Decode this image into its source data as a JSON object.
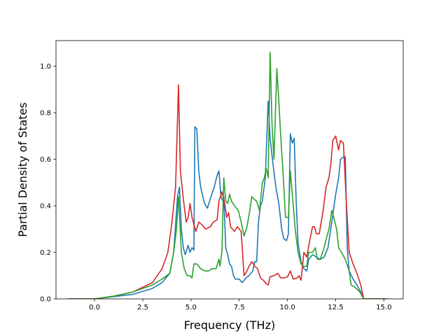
{
  "chart_data": {
    "type": "line",
    "title": "",
    "xlabel": "Frequency (THz)",
    "ylabel": "Partial Density of States",
    "xlim": [
      -2.0,
      16.0
    ],
    "ylim": [
      0.0,
      1.11
    ],
    "xticks": [
      0.0,
      2.5,
      5.0,
      7.5,
      10.0,
      12.5,
      15.0
    ],
    "xtick_labels": [
      "0.0",
      "2.5",
      "5.0",
      "7.5",
      "10.0",
      "12.5",
      "15.0"
    ],
    "yticks": [
      0.0,
      0.2,
      0.4,
      0.6,
      0.8,
      1.0
    ],
    "ytick_labels": [
      "0.0",
      "0.2",
      "0.4",
      "0.6",
      "0.8",
      "1.0"
    ],
    "grid": false,
    "legend": "none",
    "series": [
      {
        "color": "#1f77b4",
        "points": [
          [
            -1.4,
            0.0
          ],
          [
            0.0,
            0.0
          ],
          [
            1.0,
            0.01
          ],
          [
            2.0,
            0.02
          ],
          [
            3.0,
            0.045
          ],
          [
            3.5,
            0.07
          ],
          [
            3.9,
            0.11
          ],
          [
            4.1,
            0.2
          ],
          [
            4.3,
            0.44
          ],
          [
            4.4,
            0.48
          ],
          [
            4.5,
            0.3
          ],
          [
            4.6,
            0.22
          ],
          [
            4.7,
            0.19
          ],
          [
            4.85,
            0.23
          ],
          [
            4.95,
            0.2
          ],
          [
            5.05,
            0.22
          ],
          [
            5.15,
            0.21
          ],
          [
            5.2,
            0.74
          ],
          [
            5.3,
            0.73
          ],
          [
            5.4,
            0.55
          ],
          [
            5.5,
            0.48
          ],
          [
            5.7,
            0.41
          ],
          [
            5.85,
            0.39
          ],
          [
            6.0,
            0.43
          ],
          [
            6.2,
            0.48
          ],
          [
            6.35,
            0.53
          ],
          [
            6.45,
            0.55
          ],
          [
            6.55,
            0.44
          ],
          [
            6.65,
            0.42
          ],
          [
            6.7,
            0.44
          ],
          [
            6.8,
            0.22
          ],
          [
            6.9,
            0.19
          ],
          [
            7.0,
            0.15
          ],
          [
            7.1,
            0.14
          ],
          [
            7.2,
            0.1
          ],
          [
            7.3,
            0.085
          ],
          [
            7.5,
            0.085
          ],
          [
            7.65,
            0.07
          ],
          [
            7.85,
            0.09
          ],
          [
            8.0,
            0.1
          ],
          [
            8.2,
            0.12
          ],
          [
            8.3,
            0.16
          ],
          [
            8.4,
            0.16
          ],
          [
            8.5,
            0.33
          ],
          [
            8.6,
            0.4
          ],
          [
            8.7,
            0.42
          ],
          [
            8.85,
            0.52
          ],
          [
            9.0,
            0.85
          ],
          [
            9.1,
            0.69
          ],
          [
            9.25,
            0.58
          ],
          [
            9.4,
            0.48
          ],
          [
            9.55,
            0.41
          ],
          [
            9.7,
            0.3
          ],
          [
            9.8,
            0.26
          ],
          [
            9.95,
            0.25
          ],
          [
            10.05,
            0.28
          ],
          [
            10.15,
            0.71
          ],
          [
            10.25,
            0.67
          ],
          [
            10.35,
            0.69
          ],
          [
            10.45,
            0.42
          ],
          [
            10.55,
            0.24
          ],
          [
            10.7,
            0.16
          ],
          [
            10.85,
            0.13
          ],
          [
            11.0,
            0.12
          ],
          [
            11.1,
            0.17
          ],
          [
            11.3,
            0.19
          ],
          [
            11.5,
            0.18
          ],
          [
            11.7,
            0.17
          ],
          [
            11.9,
            0.18
          ],
          [
            12.1,
            0.22
          ],
          [
            12.3,
            0.33
          ],
          [
            12.5,
            0.45
          ],
          [
            12.65,
            0.52
          ],
          [
            12.75,
            0.6
          ],
          [
            12.9,
            0.61
          ],
          [
            13.0,
            0.61
          ],
          [
            13.1,
            0.22
          ],
          [
            13.2,
            0.12
          ],
          [
            13.4,
            0.085
          ],
          [
            13.6,
            0.06
          ],
          [
            13.8,
            0.03
          ],
          [
            13.95,
            0.0
          ],
          [
            15.2,
            0.0
          ]
        ]
      },
      {
        "color": "#d62728",
        "points": [
          [
            -1.4,
            0.0
          ],
          [
            0.0,
            0.0
          ],
          [
            1.0,
            0.012
          ],
          [
            2.0,
            0.03
          ],
          [
            3.0,
            0.07
          ],
          [
            3.5,
            0.13
          ],
          [
            3.8,
            0.2
          ],
          [
            4.0,
            0.32
          ],
          [
            4.2,
            0.48
          ],
          [
            4.35,
            0.92
          ],
          [
            4.45,
            0.55
          ],
          [
            4.6,
            0.43
          ],
          [
            4.75,
            0.33
          ],
          [
            4.85,
            0.35
          ],
          [
            4.95,
            0.41
          ],
          [
            5.05,
            0.35
          ],
          [
            5.15,
            0.32
          ],
          [
            5.25,
            0.29
          ],
          [
            5.4,
            0.33
          ],
          [
            5.55,
            0.32
          ],
          [
            5.75,
            0.3
          ],
          [
            6.0,
            0.31
          ],
          [
            6.15,
            0.33
          ],
          [
            6.35,
            0.34
          ],
          [
            6.45,
            0.42
          ],
          [
            6.6,
            0.46
          ],
          [
            6.75,
            0.41
          ],
          [
            6.85,
            0.35
          ],
          [
            6.95,
            0.37
          ],
          [
            7.05,
            0.31
          ],
          [
            7.25,
            0.29
          ],
          [
            7.4,
            0.31
          ],
          [
            7.6,
            0.29
          ],
          [
            7.75,
            0.1
          ],
          [
            7.9,
            0.12
          ],
          [
            8.0,
            0.14
          ],
          [
            8.15,
            0.16
          ],
          [
            8.3,
            0.14
          ],
          [
            8.45,
            0.13
          ],
          [
            8.6,
            0.09
          ],
          [
            8.75,
            0.08
          ],
          [
            8.9,
            0.065
          ],
          [
            9.0,
            0.06
          ],
          [
            9.1,
            0.095
          ],
          [
            9.3,
            0.1
          ],
          [
            9.5,
            0.11
          ],
          [
            9.65,
            0.09
          ],
          [
            9.8,
            0.09
          ],
          [
            10.0,
            0.095
          ],
          [
            10.15,
            0.12
          ],
          [
            10.3,
            0.085
          ],
          [
            10.5,
            0.09
          ],
          [
            10.6,
            0.1
          ],
          [
            10.7,
            0.08
          ],
          [
            10.85,
            0.2
          ],
          [
            11.0,
            0.18
          ],
          [
            11.15,
            0.25
          ],
          [
            11.3,
            0.31
          ],
          [
            11.4,
            0.31
          ],
          [
            11.5,
            0.28
          ],
          [
            11.65,
            0.28
          ],
          [
            11.85,
            0.38
          ],
          [
            12.0,
            0.48
          ],
          [
            12.15,
            0.52
          ],
          [
            12.25,
            0.58
          ],
          [
            12.35,
            0.68
          ],
          [
            12.5,
            0.7
          ],
          [
            12.65,
            0.64
          ],
          [
            12.75,
            0.68
          ],
          [
            12.9,
            0.67
          ],
          [
            13.05,
            0.42
          ],
          [
            13.2,
            0.2
          ],
          [
            13.4,
            0.15
          ],
          [
            13.6,
            0.11
          ],
          [
            13.8,
            0.06
          ],
          [
            13.95,
            0.0
          ],
          [
            15.2,
            0.0
          ]
        ]
      },
      {
        "color": "#2ca02c",
        "points": [
          [
            -1.4,
            0.0
          ],
          [
            0.0,
            0.0
          ],
          [
            1.0,
            0.012
          ],
          [
            2.0,
            0.03
          ],
          [
            3.0,
            0.06
          ],
          [
            3.5,
            0.085
          ],
          [
            3.9,
            0.11
          ],
          [
            4.1,
            0.2
          ],
          [
            4.25,
            0.3
          ],
          [
            4.35,
            0.44
          ],
          [
            4.5,
            0.2
          ],
          [
            4.65,
            0.13
          ],
          [
            4.8,
            0.1
          ],
          [
            4.95,
            0.1
          ],
          [
            5.05,
            0.09
          ],
          [
            5.15,
            0.15
          ],
          [
            5.3,
            0.15
          ],
          [
            5.5,
            0.13
          ],
          [
            5.7,
            0.12
          ],
          [
            5.9,
            0.12
          ],
          [
            6.1,
            0.13
          ],
          [
            6.3,
            0.13
          ],
          [
            6.45,
            0.17
          ],
          [
            6.5,
            0.14
          ],
          [
            6.6,
            0.2
          ],
          [
            6.7,
            0.52
          ],
          [
            6.8,
            0.42
          ],
          [
            6.9,
            0.41
          ],
          [
            7.0,
            0.45
          ],
          [
            7.1,
            0.42
          ],
          [
            7.25,
            0.4
          ],
          [
            7.45,
            0.38
          ],
          [
            7.6,
            0.33
          ],
          [
            7.75,
            0.27
          ],
          [
            7.9,
            0.31
          ],
          [
            8.05,
            0.38
          ],
          [
            8.15,
            0.44
          ],
          [
            8.25,
            0.43
          ],
          [
            8.4,
            0.42
          ],
          [
            8.55,
            0.38
          ],
          [
            8.7,
            0.5
          ],
          [
            8.8,
            0.52
          ],
          [
            8.9,
            0.56
          ],
          [
            9.0,
            0.52
          ],
          [
            9.1,
            1.06
          ],
          [
            9.2,
            0.75
          ],
          [
            9.3,
            0.6
          ],
          [
            9.45,
            0.99
          ],
          [
            9.55,
            0.85
          ],
          [
            9.65,
            0.7
          ],
          [
            9.75,
            0.57
          ],
          [
            9.9,
            0.35
          ],
          [
            10.05,
            0.35
          ],
          [
            10.15,
            0.55
          ],
          [
            10.25,
            0.45
          ],
          [
            10.4,
            0.3
          ],
          [
            10.55,
            0.2
          ],
          [
            10.7,
            0.15
          ],
          [
            10.85,
            0.14
          ],
          [
            11.0,
            0.14
          ],
          [
            11.1,
            0.2
          ],
          [
            11.3,
            0.2
          ],
          [
            11.45,
            0.22
          ],
          [
            11.55,
            0.17
          ],
          [
            11.7,
            0.17
          ],
          [
            11.9,
            0.22
          ],
          [
            12.05,
            0.27
          ],
          [
            12.15,
            0.3
          ],
          [
            12.3,
            0.38
          ],
          [
            12.4,
            0.35
          ],
          [
            12.55,
            0.3
          ],
          [
            12.65,
            0.22
          ],
          [
            12.8,
            0.2
          ],
          [
            13.0,
            0.17
          ],
          [
            13.2,
            0.12
          ],
          [
            13.3,
            0.06
          ],
          [
            13.5,
            0.05
          ],
          [
            13.75,
            0.03
          ],
          [
            13.95,
            0.0
          ],
          [
            15.2,
            0.0
          ]
        ]
      }
    ]
  }
}
